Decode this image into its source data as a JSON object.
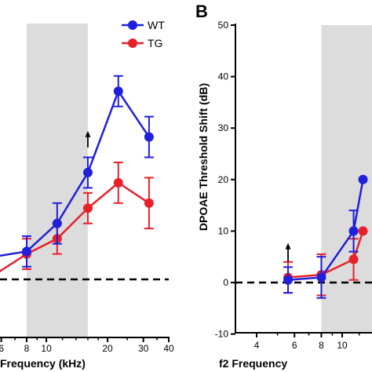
{
  "colors": {
    "wt": "#1f1fdc",
    "tg": "#e8202a",
    "shade": "#dcdcdc"
  },
  "chart_data": [
    {
      "panel": "A",
      "type": "line",
      "xlabel": "Frequency (kHz)",
      "ylabel": "",
      "x_scale": "log",
      "x_ticks": [
        6,
        8,
        10,
        20,
        30,
        40
      ],
      "xlim": [
        5.5,
        40
      ],
      "ylim": [
        -10,
        50
      ],
      "shaded_band": [
        8,
        16
      ],
      "reference_line_y": 0,
      "legend": {
        "position": "top-right",
        "entries": [
          "WT",
          "TG"
        ]
      },
      "series": [
        {
          "name": "WT",
          "x": [
            5.6,
            8,
            11.3,
            16,
            22.6,
            32
          ],
          "y": [
            4.5,
            5.5,
            11,
            21,
            37,
            28
          ],
          "err": [
            3,
            3,
            4,
            3,
            3,
            4
          ]
        },
        {
          "name": "TG",
          "x": [
            5.6,
            8,
            11.3,
            16,
            22.6,
            32
          ],
          "y": [
            1,
            5,
            8,
            14,
            19,
            15
          ],
          "err": [
            3,
            3,
            3,
            3,
            4,
            5
          ]
        }
      ],
      "annotations": [
        {
          "type": "arrow-up",
          "x": 16,
          "y": 27.5
        }
      ]
    },
    {
      "panel": "B",
      "type": "line",
      "title": "B",
      "xlabel": "f2 Frequency",
      "ylabel": "DPOAE Threshold Shift (dB)",
      "x_scale": "log",
      "x_ticks": [
        4,
        6,
        8,
        10
      ],
      "x_tick_labels": [
        "4",
        "6",
        "8",
        "10"
      ],
      "y_ticks": [
        -10,
        0,
        10,
        20,
        30,
        40,
        50
      ],
      "ylim": [
        -10,
        50
      ],
      "shaded_band": [
        8,
        16
      ],
      "reference_line_y": 0,
      "series": [
        {
          "name": "WT",
          "x": [
            5.6,
            8,
            11.3,
            12.5
          ],
          "y": [
            0.5,
            1,
            10,
            20
          ],
          "err": [
            2.5,
            4,
            4,
            0
          ]
        },
        {
          "name": "TG",
          "x": [
            5.6,
            8,
            11.3,
            12.5
          ],
          "y": [
            1,
            1.5,
            4.5,
            10
          ],
          "err": [
            3,
            4,
            4,
            0
          ]
        }
      ],
      "annotations": [
        {
          "type": "arrow-up",
          "x": 5.6,
          "y": 6
        }
      ]
    }
  ]
}
